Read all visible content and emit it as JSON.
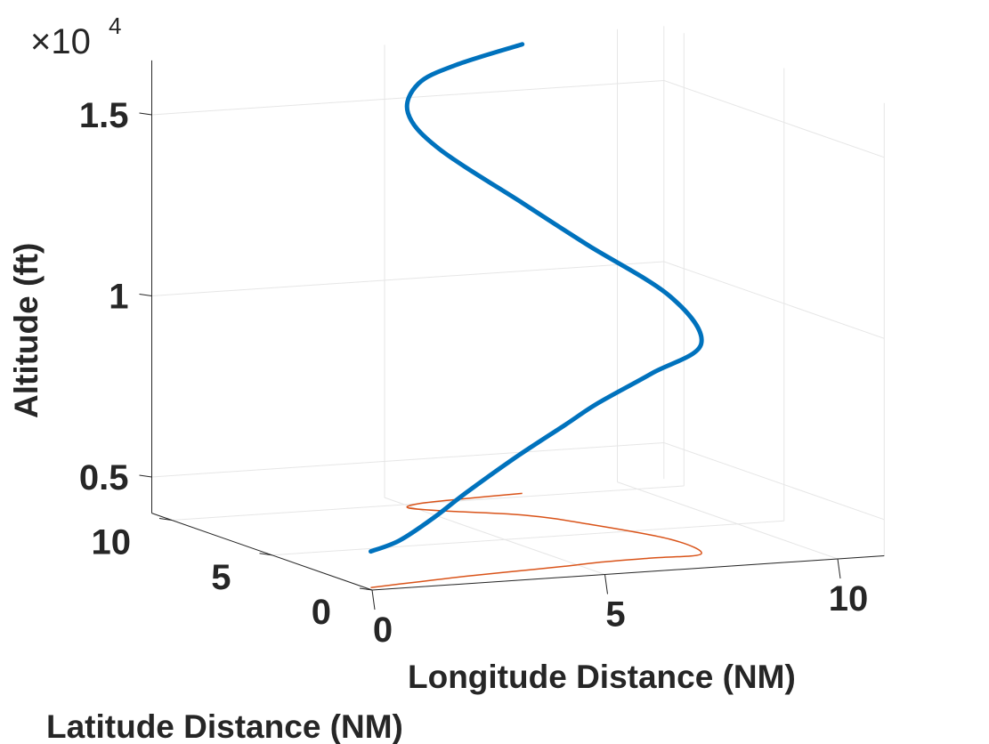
{
  "chart_data": {
    "type": "line",
    "projection": "3d",
    "title": "",
    "xlabel": "Longitude Distance (NM)",
    "ylabel": "Latitude Distance (NM)",
    "zlabel": "Altitude (ft)",
    "z_exponent_label": {
      "base": "×10",
      "power": "4"
    },
    "xlim": [
      0,
      11
    ],
    "ylim": [
      0,
      11
    ],
    "zlim": [
      4000,
      16500
    ],
    "x_ticks": [
      {
        "value": 0,
        "label": "0"
      },
      {
        "value": 5,
        "label": "5"
      },
      {
        "value": 10,
        "label": "10"
      }
    ],
    "y_ticks": [
      {
        "value": 0,
        "label": "0"
      },
      {
        "value": 5,
        "label": "5"
      },
      {
        "value": 10,
        "label": "10"
      }
    ],
    "z_ticks": [
      {
        "value": 5000,
        "label": "0.5"
      },
      {
        "value": 10000,
        "label": "1"
      },
      {
        "value": 15000,
        "label": "1.5"
      }
    ],
    "grid": true,
    "series": [
      {
        "kind": "trajectory-3d",
        "color": "#0072BD",
        "x": [
          0.1,
          0.8,
          1.6,
          2.4,
          3.5,
          4.7,
          5.5,
          6.7,
          7.8,
          8.0,
          7.3,
          6.6,
          5.3,
          4.9,
          5.3,
          6.2,
          7.7
        ],
        "y": [
          0.3,
          0.5,
          0.7,
          0.9,
          1.1,
          1.3,
          1.5,
          1.6,
          1.7,
          3.7,
          6.2,
          7.8,
          9.0,
          9.6,
          10.0,
          10.2,
          10.4
        ],
        "z": [
          5000,
          5200,
          5700,
          6300,
          7100,
          7900,
          8400,
          9100,
          9800,
          10700,
          11700,
          12600,
          14000,
          14900,
          15600,
          16000,
          16400
        ]
      },
      {
        "kind": "ground-track",
        "color": "#D95319",
        "x": [
          0.1,
          0.8,
          1.6,
          2.4,
          3.5,
          4.7,
          5.5,
          6.7,
          7.8,
          8.0,
          7.3,
          6.6,
          5.3,
          4.9,
          5.3,
          6.2,
          7.7
        ],
        "y": [
          0.3,
          0.5,
          0.7,
          0.9,
          1.1,
          1.3,
          1.5,
          1.6,
          1.7,
          3.7,
          6.2,
          7.8,
          9.0,
          9.6,
          10.0,
          10.2,
          10.4
        ]
      }
    ]
  }
}
